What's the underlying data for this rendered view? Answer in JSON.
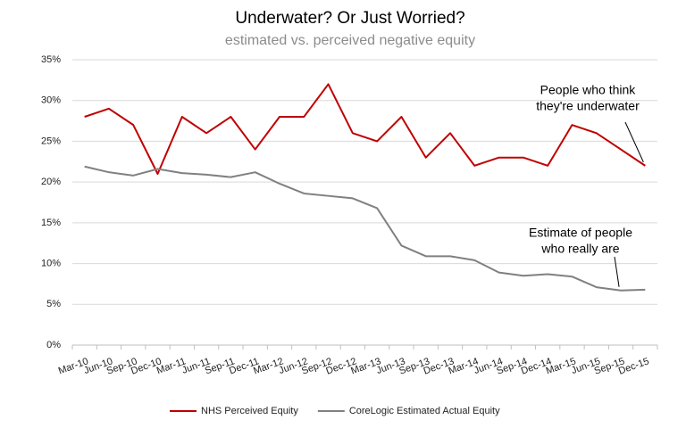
{
  "chart_data": {
    "type": "line",
    "title": "Underwater?  Or Just Worried?",
    "subtitle": "estimated vs. perceived negative equity",
    "categories": [
      "Mar-10",
      "Jun-10",
      "Sep-10",
      "Dec-10",
      "Mar-11",
      "Jun-11",
      "Sep-11",
      "Dec-11",
      "Mar-12",
      "Jun-12",
      "Sep-12",
      "Dec-12",
      "Mar-13",
      "Jun-13",
      "Sep-13",
      "Dec-13",
      "Mar-14",
      "Jun-14",
      "Sep-14",
      "Dec-14",
      "Mar-15",
      "Jun-15",
      "Sep-15",
      "Dec-15"
    ],
    "series": [
      {
        "name": "NHS Perceived Equity",
        "color": "#c00000",
        "values": [
          28,
          29,
          27,
          21,
          28,
          26,
          28,
          24,
          28,
          28,
          32,
          26,
          25,
          28,
          23,
          26,
          22,
          23,
          23,
          22,
          27,
          26,
          24,
          22
        ]
      },
      {
        "name": "CoreLogic Estimated Actual Equity",
        "color": "#808080",
        "values": [
          21.9,
          21.2,
          20.8,
          21.6,
          21.1,
          20.9,
          20.6,
          21.2,
          19.8,
          18.6,
          18.3,
          18.0,
          16.8,
          12.2,
          10.9,
          10.9,
          10.4,
          8.9,
          8.5,
          8.7,
          8.4,
          7.1,
          6.7,
          6.8
        ]
      }
    ],
    "ylim": [
      0,
      35
    ],
    "yticks": [
      {
        "value": 0,
        "label": "0%"
      },
      {
        "value": 5,
        "label": "5%"
      },
      {
        "value": 10,
        "label": "10%"
      },
      {
        "value": 15,
        "label": "15%"
      },
      {
        "value": 20,
        "label": "20%"
      },
      {
        "value": 25,
        "label": "25%"
      },
      {
        "value": 30,
        "label": "30%"
      },
      {
        "value": 35,
        "label": "35%"
      }
    ],
    "grid": true,
    "legend": "bottom",
    "annotations": [
      {
        "lines": [
          "People who think",
          "they're underwater"
        ],
        "series": 0,
        "index": 23
      },
      {
        "lines": [
          "Estimate of people",
          "who really are"
        ],
        "series": 1,
        "index": 22
      }
    ]
  }
}
